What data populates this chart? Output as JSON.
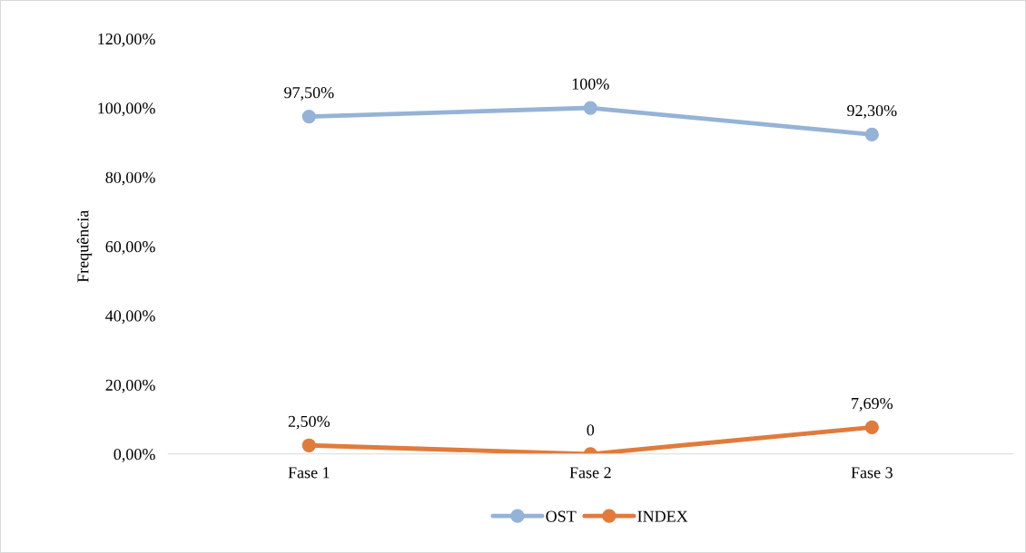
{
  "chart_data": {
    "type": "line",
    "ylabel": "Frequência",
    "categories": [
      "Fase 1",
      "Fase 2",
      "Fase 3"
    ],
    "series": [
      {
        "name": "OST",
        "color": "#95b3d7",
        "values": [
          97.5,
          100,
          92.3
        ],
        "value_labels": [
          "97,50%",
          "100%",
          "92,30%"
        ]
      },
      {
        "name": "INDEX",
        "color": "#e07b3c",
        "values": [
          2.5,
          0,
          7.69
        ],
        "value_labels": [
          "2,50%",
          "0",
          "7,69%"
        ]
      }
    ],
    "ylim": [
      0,
      120
    ],
    "yticks": [
      {
        "value": 0,
        "label": "0,00%"
      },
      {
        "value": 20,
        "label": "20,00%"
      },
      {
        "value": 40,
        "label": "40,00%"
      },
      {
        "value": 60,
        "label": "60,00%"
      },
      {
        "value": 80,
        "label": "80,00%"
      },
      {
        "value": 100,
        "label": "100,00%"
      },
      {
        "value": 120,
        "label": "120,00%"
      }
    ],
    "grid": false,
    "legend": "bottom",
    "marker": "circle",
    "line_style": "solid"
  }
}
